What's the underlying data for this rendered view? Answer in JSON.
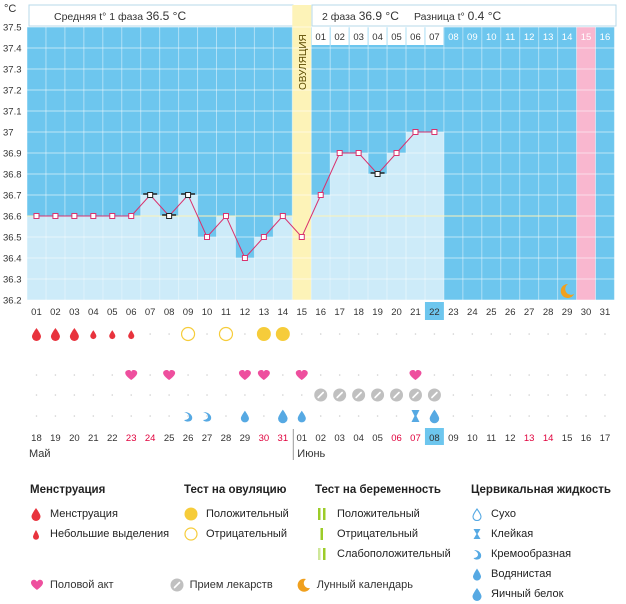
{
  "header": {
    "phase1_label": "Средняя t° 1 фаза",
    "phase1_value": "36.5 °С",
    "phase2_label": "2 фаза",
    "phase2_value": "36.9 °С",
    "diff_label": "Разница t°",
    "diff_value": "0.4 °С",
    "ovulation_label": "ОВУЛЯЦИЯ"
  },
  "chart_data": {
    "type": "line",
    "ylabel": "°С",
    "ylim": [
      36.2,
      37.5
    ],
    "yticks": [
      "37.5",
      "37.4",
      "37.3",
      "37.2",
      "37.1",
      "37",
      "36.9",
      "36.8",
      "36.7",
      "36.6",
      "36.5",
      "36.4",
      "36.3",
      "36.2"
    ],
    "cycle_days": [
      "01",
      "02",
      "03",
      "04",
      "05",
      "06",
      "07",
      "08",
      "09",
      "10",
      "11",
      "12",
      "13",
      "14",
      "15",
      "16",
      "17",
      "18",
      "19",
      "20",
      "21",
      "22",
      "23",
      "24",
      "25",
      "26",
      "27",
      "28",
      "29",
      "30",
      "31"
    ],
    "top_dates": [
      "01",
      "02",
      "03",
      "04",
      "05",
      "06",
      "07",
      "08",
      "09",
      "10",
      "11",
      "12",
      "13",
      "14",
      "15",
      "16"
    ],
    "calendar_dates": [
      "18",
      "19",
      "20",
      "21",
      "22",
      "23",
      "24",
      "25",
      "26",
      "27",
      "28",
      "29",
      "30",
      "31",
      "01",
      "02",
      "03",
      "04",
      "05",
      "06",
      "07",
      "08",
      "09",
      "10",
      "11",
      "12",
      "13",
      "14",
      "15",
      "16",
      "17"
    ],
    "weekend_indexes": [
      5,
      6,
      12,
      13,
      19,
      20,
      26,
      27
    ],
    "today_index": 21,
    "month_start": "Май",
    "month_second": "Июнь",
    "series": [
      {
        "values": [
          36.6,
          36.6,
          36.6,
          36.6,
          36.6,
          36.6,
          36.7,
          36.6,
          36.7,
          36.5,
          36.6,
          36.4,
          36.5,
          36.6,
          36.5,
          36.7,
          36.9,
          36.9,
          36.8,
          36.9,
          37.0,
          37.0
        ]
      }
    ],
    "open_marker_indexes": [
      6,
      7,
      8,
      18
    ],
    "coverline": 36.6,
    "ovulation_day_index": 14,
    "pink_day_index": 29,
    "moon_day_index": 28,
    "menstruation": [
      "big",
      "big",
      "big",
      "small",
      "small",
      "small"
    ],
    "ovulation_tests": {
      "negative": [
        8,
        10
      ],
      "positive": [
        12,
        13
      ]
    },
    "intercourse": [
      5,
      7,
      11,
      12,
      14,
      20
    ],
    "pills": [
      15,
      16,
      17,
      18,
      19,
      20,
      21
    ],
    "cervical": [
      {
        "day": 8,
        "kind": "creamy"
      },
      {
        "day": 9,
        "kind": "creamy"
      },
      {
        "day": 11,
        "kind": "watery"
      },
      {
        "day": 13,
        "kind": "eggwhite"
      },
      {
        "day": 14,
        "kind": "watery"
      },
      {
        "day": 20,
        "kind": "sticky"
      },
      {
        "day": 21,
        "kind": "eggwhite"
      }
    ]
  },
  "legend": {
    "menstruation_title": "Менструация",
    "menstruation_items": [
      "Менструация",
      "Небольшие выделения"
    ],
    "ovulation_title": "Тест на овуляцию",
    "ovulation_items": [
      "Положительный",
      "Отрицательный"
    ],
    "pregnancy_title": "Тест на беременность",
    "pregnancy_items": [
      "Положительный",
      "Отрицательный",
      "Слабоположительный"
    ],
    "cervical_title": "Цервикальная жидкость",
    "cervical_items": [
      "Сухо",
      "Клейкая",
      "Кремообразная",
      "Водянистая",
      "Яичный белок"
    ],
    "bottom_items": [
      "Половой акт",
      "Прием лекарств",
      "Лунный календарь"
    ]
  },
  "colors": {
    "blue": "#6dc6ee",
    "bar": "#cdebf9",
    "ovulation": "#fdf3b8",
    "pink": "#f9b7cf",
    "line": "#d9326e",
    "drop": "#e8333d",
    "yellow": "#f6cc3a",
    "heart": "#ee4f9e",
    "pill": "#c0c0c0",
    "cervical": "#56a9e3",
    "weekend": "#e0003c",
    "green": "#9ccc29"
  }
}
